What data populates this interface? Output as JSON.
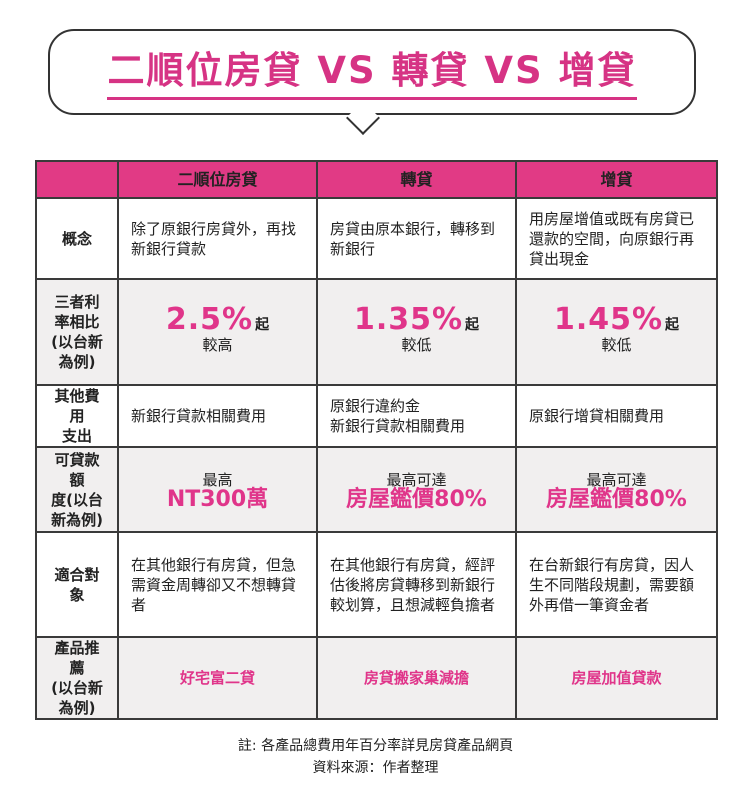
{
  "title": "二順位房貸 VS 轉貸 VS 增貸",
  "headers": [
    "二順位房貸",
    "轉貸",
    "增貸"
  ],
  "rows": {
    "concept": {
      "label": "概念",
      "cells": [
        "除了原銀行房貸外，再找新銀行貸款",
        "房貸由原本銀行，轉移到新銀行",
        "用房屋增值或既有房貸已還款的空間，向原銀行再貸出現金"
      ]
    },
    "rate": {
      "label": "三者利率相比(以台新為例)",
      "label_lines": [
        "三者利",
        "率相比",
        "(以台新",
        "為例)"
      ],
      "cells": [
        {
          "value": "2.5%",
          "suffix": "起",
          "note": "較高"
        },
        {
          "value": "1.35%",
          "suffix": "起",
          "note": "較低"
        },
        {
          "value": "1.45%",
          "suffix": "起",
          "note": "較低"
        }
      ]
    },
    "fees": {
      "label": "其他費用支出",
      "label_lines": [
        "其他費用",
        "支出"
      ],
      "cells": [
        "新銀行貸款相關費用",
        "原銀行違約金\n新銀行貸款相關費用",
        "原銀行增貸相關費用"
      ]
    },
    "amount": {
      "label": "可貸款額度(以台新為例)",
      "label_lines": [
        "可貸款額",
        "度(以台",
        "新為例)"
      ],
      "cells": [
        {
          "caption": "最高",
          "value": "NT300萬"
        },
        {
          "caption": "最高可達",
          "value": "房屋鑑價80%"
        },
        {
          "caption": "最高可達",
          "value": "房屋鑑價80%"
        }
      ]
    },
    "target": {
      "label": "適合對象",
      "cells": [
        "在其他銀行有房貸，但急需資金周轉卻又不想轉貸者",
        "在其他銀行有房貸，經評估後將房貸轉移到新銀行較划算，且想減輕負擔者",
        "在台新銀行有房貸，因人生不同階段規劃，需要額外再借一筆資金者"
      ]
    },
    "product": {
      "label": "產品推薦(以台新為例)",
      "label_lines": [
        "產品推薦",
        "(以台新",
        "為例)"
      ],
      "cells": [
        "好宅富二貸",
        "房貸搬家巢減擔",
        "房屋加值貸款"
      ]
    }
  },
  "notes": [
    "註: 各產品總費用年百分率詳見房貸產品網頁",
    "資料來源：作者整理"
  ],
  "colors": {
    "accent": "#e0358a",
    "header_bg": "#e13a85",
    "alt_row_bg": "#f1efef",
    "border": "#3a3a3a"
  }
}
